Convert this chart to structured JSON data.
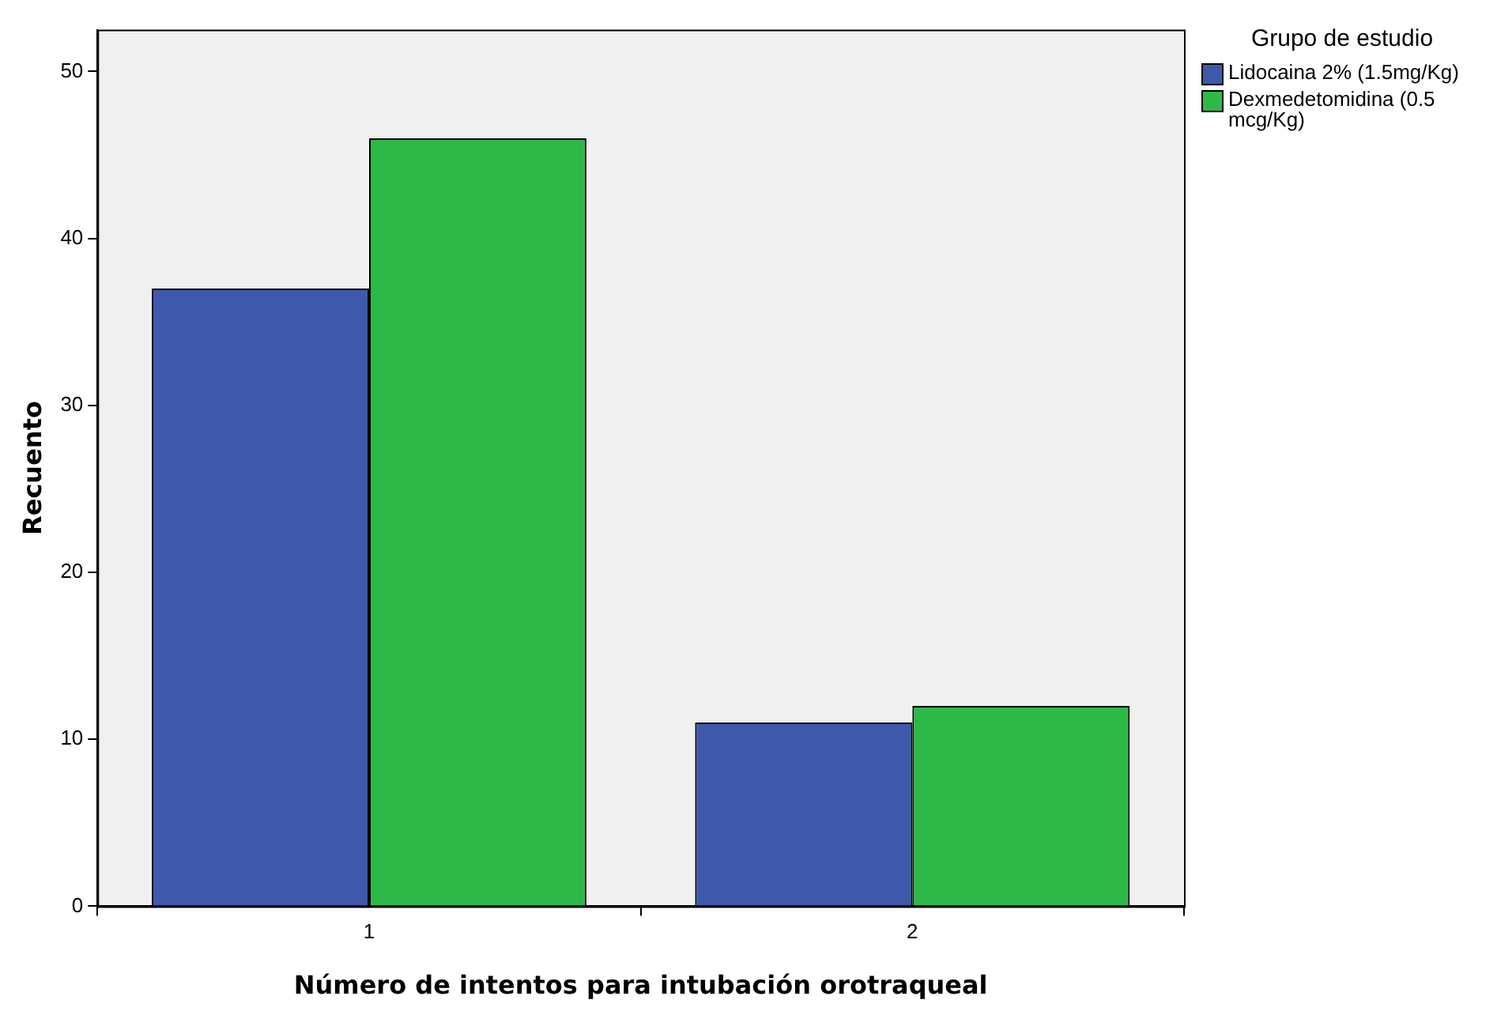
{
  "chart_data": {
    "type": "bar",
    "xlabel": "Número de intentos para intubación orotraqueal",
    "ylabel": "Recuento",
    "legend_title": "Grupo de estudio",
    "categories": [
      "1",
      "2"
    ],
    "series": [
      {
        "name": "Lidocaina 2% (1.5mg/Kg)",
        "color": "#3e58ac",
        "values": [
          37,
          11
        ]
      },
      {
        "name": "Dexmedetomidina (0.5 mcg/Kg)",
        "color": "#2eb848",
        "values": [
          46,
          12
        ]
      }
    ],
    "ylim": [
      0,
      52.5
    ],
    "yticks": [
      0,
      10,
      20,
      30,
      40,
      50
    ],
    "grid": false,
    "legend": "top right"
  }
}
